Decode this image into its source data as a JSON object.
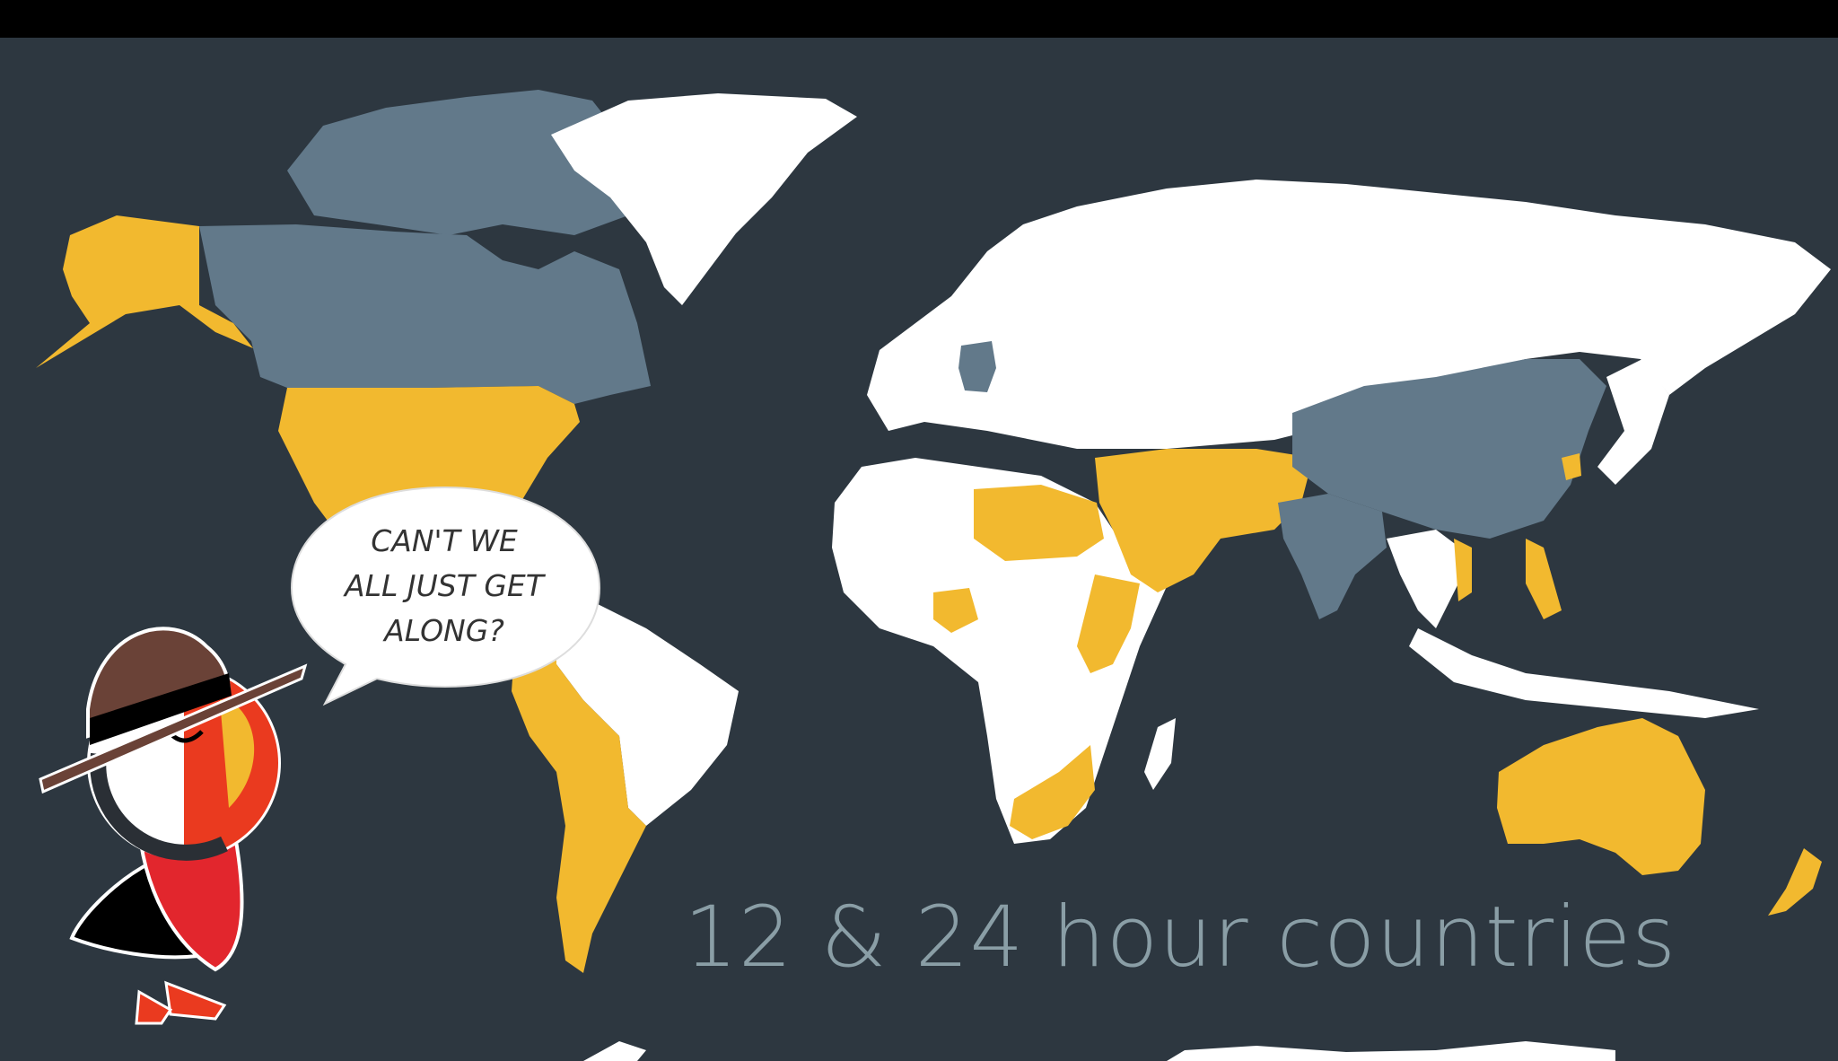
{
  "title": "12 & 24 hour countries",
  "speech_bubble": {
    "lines": [
      "CAN'T WE",
      "ALL JUST GET",
      "ALONG?"
    ]
  },
  "legend_colors": {
    "ocean": "#2d3740",
    "yellow_regions": "#f2b92f",
    "slate_regions": "#62798a",
    "white_regions": "#ffffff"
  },
  "icons": {
    "mascot": "puffin-mountie-icon"
  }
}
